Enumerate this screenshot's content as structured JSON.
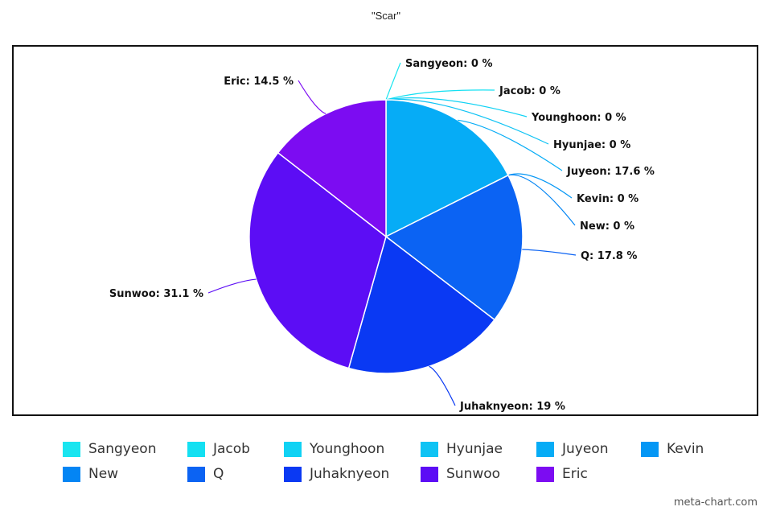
{
  "chart_data": {
    "type": "pie",
    "title": "\"Scar\"",
    "slices": [
      {
        "name": "Sangyeon",
        "value": 0,
        "label": "Sangyeon: 0 %",
        "color": "#1ae5f0"
      },
      {
        "name": "Jacob",
        "value": 0,
        "label": "Jacob: 0 %",
        "color": "#14e0f2"
      },
      {
        "name": "Younghoon",
        "value": 0,
        "label": "Younghoon: 0 %",
        "color": "#10d2f4"
      },
      {
        "name": "Hyunjae",
        "value": 0,
        "label": "Hyunjae: 0 %",
        "color": "#0fc3f4"
      },
      {
        "name": "Juyeon",
        "value": 17.6,
        "label": "Juyeon: 17.6 %",
        "color": "#06acf6"
      },
      {
        "name": "Kevin",
        "value": 0,
        "label": "Kevin: 0 %",
        "color": "#0597f5"
      },
      {
        "name": "New",
        "value": 0,
        "label": "New: 0 %",
        "color": "#0385f4"
      },
      {
        "name": "Q",
        "value": 17.8,
        "label": "Q: 17.8 %",
        "color": "#0b63f3"
      },
      {
        "name": "Juhaknyeon",
        "value": 19,
        "label": "Juhaknyeon: 19 %",
        "color": "#0a39f3"
      },
      {
        "name": "Sunwoo",
        "value": 31.1,
        "label": "Sunwoo: 31.1 %",
        "color": "#5c0df5"
      },
      {
        "name": "Eric",
        "value": 14.5,
        "label": "Eric: 14.5 %",
        "color": "#7c0cf2"
      }
    ],
    "legend_position": "bottom"
  },
  "watermark": "meta-chart.com"
}
